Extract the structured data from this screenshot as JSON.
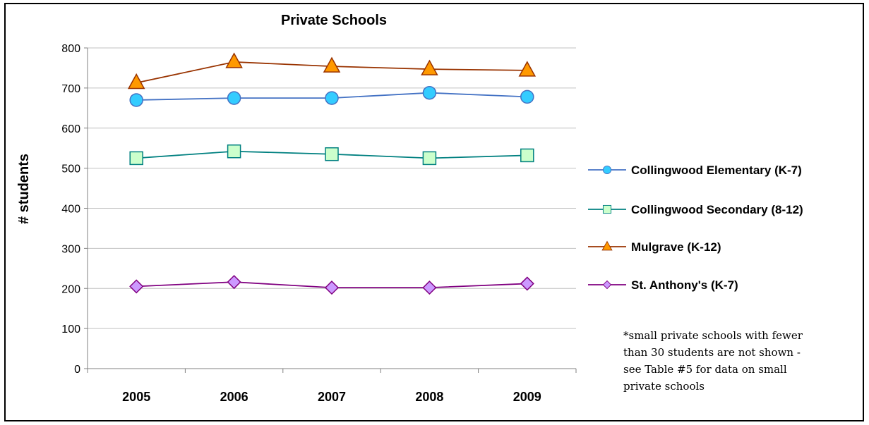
{
  "chart_data": {
    "type": "line",
    "title": "Private Schools",
    "xlabel": "",
    "ylabel": "# students",
    "categories": [
      "2005",
      "2006",
      "2007",
      "2008",
      "2009"
    ],
    "ylim": [
      0,
      800
    ],
    "yticks": [
      0,
      100,
      200,
      300,
      400,
      500,
      600,
      700,
      800
    ],
    "grid": true,
    "legend_position": "right",
    "series": [
      {
        "name": "Collingwood Elementary (K-7)",
        "values": [
          670,
          675,
          675,
          688,
          678
        ],
        "color": "#4472c4",
        "marker": "circle",
        "marker_fill": "#33ccff"
      },
      {
        "name": "Collingwood Secondary (8-12)",
        "values": [
          525,
          542,
          535,
          525,
          532
        ],
        "color": "#008080",
        "marker": "square",
        "marker_fill": "#ccffcc"
      },
      {
        "name": "Mulgrave (K-12)",
        "values": [
          713,
          765,
          754,
          747,
          744
        ],
        "color": "#993300",
        "marker": "triangle",
        "marker_fill": "#ff9900"
      },
      {
        "name": "St. Anthony's (K-7)",
        "values": [
          205,
          216,
          202,
          202,
          212
        ],
        "color": "#800080",
        "marker": "diamond",
        "marker_fill": "#cc99ff"
      }
    ]
  },
  "note_lines": [
    "*small private schools with fewer",
    "than 30 students are not shown -",
    "see Table #5 for data on small",
    "private schools"
  ]
}
